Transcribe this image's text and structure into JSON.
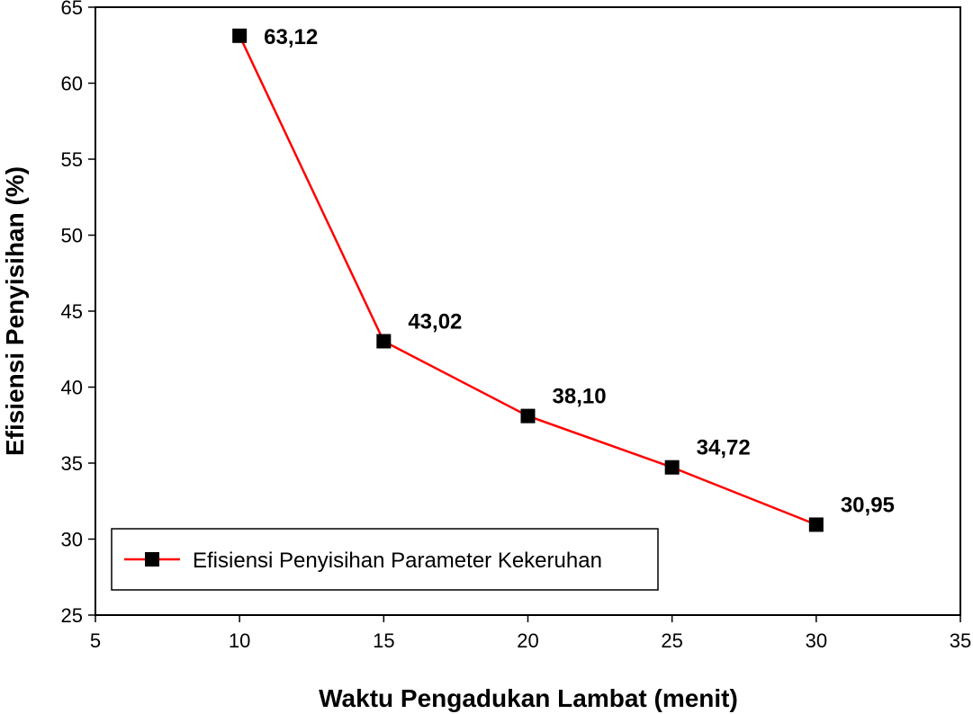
{
  "chart_data": {
    "type": "line",
    "title": "",
    "xlabel": "Waktu Pengadukan Lambat (menit)",
    "ylabel": "Efisiensi Penyisihan (%)",
    "xlim": [
      5,
      35
    ],
    "ylim": [
      25,
      65
    ],
    "xticks": [
      5,
      10,
      15,
      20,
      25,
      30,
      35
    ],
    "yticks": [
      25,
      30,
      35,
      40,
      45,
      50,
      55,
      60,
      65
    ],
    "grid": false,
    "legend_position": "bottom-left",
    "series": [
      {
        "name": "Efisiensi Penyisihan Parameter Kekeruhan",
        "color": "#ff0000",
        "marker": "square",
        "marker_color": "#000000",
        "x": [
          10,
          15,
          20,
          25,
          30
        ],
        "y": [
          63.12,
          43.02,
          38.1,
          34.72,
          30.95
        ],
        "labels": [
          "63,12",
          "43,02",
          "38,10",
          "34,72",
          "30,95"
        ]
      }
    ]
  }
}
